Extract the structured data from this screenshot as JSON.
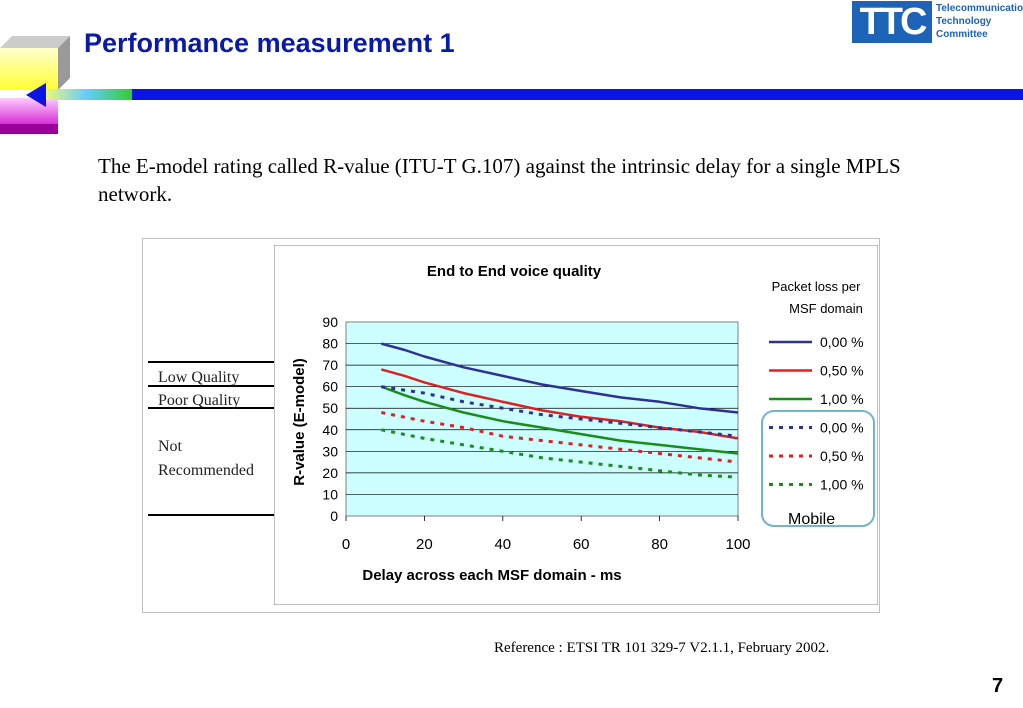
{
  "slide": {
    "title": "Performance measurement 1",
    "description": "The E-model rating called R-value (ITU-T G.107) against the intrinsic delay for a single MPLS network.",
    "reference": "Reference : ETSI TR 101 329-7 V2.1.1, February 2002.",
    "page_number": "7"
  },
  "logo": {
    "mark": "TTC",
    "lines": [
      "Telecommunication",
      "Technology",
      "Committee"
    ]
  },
  "quality_zones": {
    "low_quality": "Low Quality",
    "poor_quality": "Poor Quality",
    "not_recommended_line1": "Not",
    "not_recommended_line2": "Recommended"
  },
  "chart_data": {
    "type": "line",
    "title": "End to End voice quality",
    "xlabel": "Delay across each MSF domain -  ms",
    "ylabel": "R-value (E-model)",
    "xlim": [
      0,
      100
    ],
    "ylim": [
      0,
      90
    ],
    "x_ticks": [
      0,
      20,
      40,
      60,
      80,
      100
    ],
    "y_ticks": [
      0,
      10,
      20,
      30,
      40,
      50,
      60,
      70,
      80,
      90
    ],
    "grid": "horizontal",
    "plot_background": "#ccffff",
    "legend_title": [
      "Packet loss per",
      "MSF domain"
    ],
    "legend_group_label": "Mobile",
    "legend_position": "right",
    "series": [
      {
        "name": "0,00 %",
        "color": "#2e3192",
        "dash": false,
        "x": [
          9,
          15,
          20,
          30,
          40,
          50,
          60,
          70,
          80,
          90,
          100
        ],
        "y": [
          80,
          77,
          74,
          69,
          65,
          61,
          58,
          55,
          53,
          50,
          48
        ]
      },
      {
        "name": "0,50 %",
        "color": "#e02020",
        "dash": false,
        "x": [
          9,
          15,
          20,
          30,
          40,
          50,
          60,
          70,
          80,
          90,
          100
        ],
        "y": [
          68,
          65,
          62,
          57,
          53,
          49,
          46,
          44,
          41,
          39,
          36
        ]
      },
      {
        "name": "1,00 %",
        "color": "#1a8c1a",
        "dash": false,
        "x": [
          9,
          15,
          20,
          30,
          40,
          50,
          60,
          70,
          80,
          90,
          100
        ],
        "y": [
          60,
          56,
          53,
          48,
          44,
          41,
          38,
          35,
          33,
          31,
          29
        ]
      },
      {
        "name": "0,00 %",
        "color": "#2e3192",
        "dash": true,
        "x": [
          9,
          20,
          30,
          40,
          50,
          60,
          70,
          80,
          90,
          100
        ],
        "y": [
          60,
          57,
          53,
          50,
          47,
          45,
          43,
          41,
          39,
          37
        ]
      },
      {
        "name": "0,50 %",
        "color": "#e02020",
        "dash": true,
        "x": [
          9,
          20,
          30,
          40,
          50,
          60,
          70,
          80,
          90,
          100
        ],
        "y": [
          48,
          44,
          41,
          37,
          35,
          33,
          31,
          29,
          27,
          25
        ]
      },
      {
        "name": "1,00 %",
        "color": "#1a8c1a",
        "dash": true,
        "x": [
          9,
          20,
          30,
          40,
          50,
          60,
          70,
          80,
          90,
          100
        ],
        "y": [
          40,
          36,
          33,
          30,
          27,
          25,
          23,
          21,
          19,
          18
        ]
      }
    ]
  }
}
